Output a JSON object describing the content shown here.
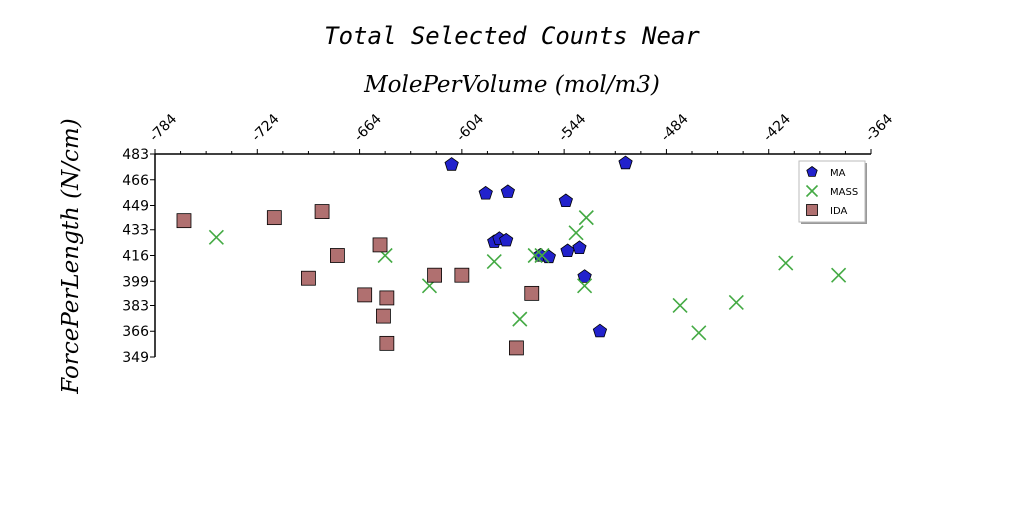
{
  "chart_data": {
    "type": "scatter",
    "title": "Total Selected Counts Near",
    "xlabel": "MolePerVolume (mol/m3)",
    "ylabel": "ForcePerLength (N/cm)",
    "xlim": [
      -784,
      -364
    ],
    "ylim": [
      349,
      483
    ],
    "x_ticks": [
      "-784",
      "-724",
      "-664",
      "-604",
      "-544",
      "-484",
      "-424",
      "-364"
    ],
    "y_ticks": [
      "483",
      "466",
      "449",
      "433",
      "416",
      "399",
      "383",
      "366",
      "349"
    ],
    "x_tick_values": [
      -784,
      -724,
      -664,
      -604,
      -544,
      -484,
      -424,
      -364
    ],
    "y_tick_values": [
      483,
      466,
      449,
      433,
      416,
      399,
      383,
      366,
      349
    ],
    "legend_position": "top-right",
    "grid": false,
    "series": [
      {
        "name": "MA",
        "marker": "pentagon",
        "color": "#2222cc",
        "points": [
          [
            -610,
            476
          ],
          [
            -508,
            477
          ],
          [
            -590,
            457
          ],
          [
            -577,
            458
          ],
          [
            -543,
            452
          ],
          [
            -585,
            425
          ],
          [
            -582,
            427
          ],
          [
            -578,
            426
          ],
          [
            -558,
            416
          ],
          [
            -553,
            415
          ],
          [
            -542,
            419
          ],
          [
            -535,
            421
          ],
          [
            -532,
            402
          ],
          [
            -523,
            366
          ]
        ]
      },
      {
        "name": "MASS",
        "marker": "x",
        "color": "#44aa44",
        "points": [
          [
            -748,
            428
          ],
          [
            -649,
            416
          ],
          [
            -623,
            396
          ],
          [
            -585,
            412
          ],
          [
            -570,
            374
          ],
          [
            -561,
            416
          ],
          [
            -557,
            416
          ],
          [
            -537,
            431
          ],
          [
            -532,
            396
          ],
          [
            -531,
            441
          ],
          [
            -476,
            383
          ],
          [
            -465,
            365
          ],
          [
            -443,
            385
          ],
          [
            -414,
            411
          ],
          [
            -383,
            403
          ]
        ]
      },
      {
        "name": "IDA",
        "marker": "square",
        "color": "#b07070",
        "points": [
          [
            -767,
            439
          ],
          [
            -714,
            441
          ],
          [
            -694,
            401
          ],
          [
            -686,
            445
          ],
          [
            -677,
            416
          ],
          [
            -661,
            390
          ],
          [
            -652,
            423
          ],
          [
            -650,
            376
          ],
          [
            -648,
            388
          ],
          [
            -648,
            358
          ],
          [
            -620,
            403
          ],
          [
            -604,
            403
          ],
          [
            -572,
            355
          ],
          [
            -563,
            391
          ]
        ]
      }
    ]
  }
}
